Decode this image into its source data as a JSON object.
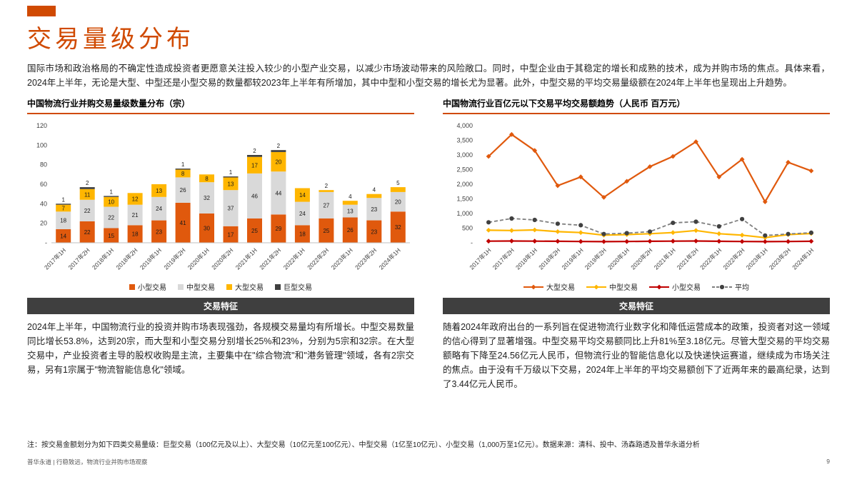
{
  "header": {
    "title": "交易量级分布",
    "intro": "国际市场和政治格局的不确定性造成投资者更愿意关注投入较少的小型产业交易，以减少市场波动带来的风险敞口。同时，中型企业由于其稳定的增长和成熟的技术，成为并购市场的焦点。具体来看，2024年上半年，无论是大型、中型还是小型交易的数量都较2023年上半年有所增加，其中中型和小型交易的增长尤为显著。此外，中型交易的平均交易量级额在2024年上半年也呈现出上升趋势。"
  },
  "left_panel": {
    "chart_title": "中国物流行业并购交易量级数量分布（宗）",
    "section_header": "交易特征",
    "body": "2024年上半年，中国物流行业的投资并购市场表现强劲，各规模交易量均有所增长。中型交易数量同比增长53.8%，达到20宗，而大型和小型交易分别增长25%和23%，分别为5宗和32宗。在大型交易中，产业投资者主导的股权收购是主流，主要集中在\"综合物流\"和\"港务管理\"领域，各有2宗交易，另有1宗属于\"物流智能信息化\"领域。"
  },
  "right_panel": {
    "chart_title": "中国物流行业百亿元以下交易平均交易额趋势（人民币 百万元）",
    "section_header": "交易特征",
    "body": "随着2024年政府出台的一系列旨在促进物流行业数字化和降低运营成本的政策，投资者对这一领域的信心得到了显著增强。中型交易平均交易额同比上升81%至3.18亿元。尽管大型交易的平均交易额略有下降至24.56亿元人民币，但物流行业的智能信息化以及快递快运赛道，继续成为市场关注的焦点。由于没有千万级以下交易，2024年上半年的平均交易额创下了近两年来的最高纪录，达到了3.44亿元人民币。"
  },
  "footnote": "注：按交易金额划分为如下四类交易量级：巨型交易（100亿元及以上）、大型交易（10亿元至100亿元）、中型交易（1亿至10亿元）、小型交易（1,000万至1亿元）。数据来源：清科、投中、汤森路透及普华永道分析",
  "footer": {
    "left": "普华永道 | 行稳致远，物流行业并购市场观察",
    "page_number": "9"
  },
  "colors": {
    "accent": "#D04A02",
    "small_deal": "#E0590D",
    "mid_deal": "#D9D9D9",
    "large_deal": "#FFB600",
    "mega_deal": "#3F3F3F",
    "red_line": "#C00000",
    "avg_line": "#7F7F7F",
    "section_bar": "#3F3F3F"
  },
  "chart_data": [
    {
      "type": "bar",
      "stacked": true,
      "title": "中国物流行业并购交易量级数量分布（宗）",
      "categories": [
        "2017年1H",
        "2017年2H",
        "2018年1H",
        "2018年2H",
        "2019年1H",
        "2019年2H",
        "2020年1H",
        "2020年2H",
        "2021年1H",
        "2021年2H",
        "2022年1H",
        "2022年2H",
        "2023年1H",
        "2023年2H",
        "2024年1H"
      ],
      "series": [
        {
          "name": "小型交易",
          "color": "#E0590D",
          "values": [
            14,
            22,
            15,
            18,
            23,
            41,
            30,
            17,
            25,
            29,
            18,
            25,
            26,
            23,
            32
          ]
        },
        {
          "name": "中型交易",
          "color": "#D9D9D9",
          "values": [
            18,
            22,
            22,
            21,
            24,
            26,
            32,
            37,
            46,
            44,
            24,
            27,
            13,
            23,
            20
          ]
        },
        {
          "name": "大型交易",
          "color": "#FFB600",
          "values": [
            7,
            11,
            10,
            12,
            13,
            8,
            8,
            13,
            17,
            20,
            14,
            2,
            4,
            4,
            5
          ]
        },
        {
          "name": "巨型交易",
          "color": "#3F3F3F",
          "values": [
            1,
            2,
            1,
            0,
            0,
            1,
            0,
            1,
            2,
            2,
            0,
            0,
            0,
            0,
            0
          ]
        }
      ],
      "ylim": [
        0,
        120
      ],
      "ytick_step": 20,
      "grid": false,
      "legend_position": "bottom"
    },
    {
      "type": "line",
      "title": "中国物流行业百亿元以下交易平均交易额趋势（人民币 百万元）",
      "categories": [
        "2017年1H",
        "2017年2H",
        "2018年1H",
        "2018年2H",
        "2019年1H",
        "2019年2H",
        "2020年1H",
        "2020年2H",
        "2021年1H",
        "2021年2H",
        "2022年1H",
        "2022年2H",
        "2023年1H",
        "2023年2H",
        "2024年1H"
      ],
      "series": [
        {
          "name": "大型交易",
          "color": "#E0590D",
          "marker": "diamond",
          "dashed": false,
          "values": [
            2950,
            3700,
            3150,
            1950,
            2250,
            1550,
            2100,
            2600,
            2950,
            3450,
            2250,
            2850,
            1400,
            2750,
            2456
          ]
        },
        {
          "name": "中型交易",
          "color": "#FFB600",
          "marker": "diamond",
          "dashed": false,
          "values": [
            430,
            420,
            440,
            380,
            350,
            260,
            280,
            310,
            350,
            420,
            310,
            260,
            176,
            280,
            318
          ]
        },
        {
          "name": "小型交易",
          "color": "#C00000",
          "marker": "diamond",
          "dashed": false,
          "values": [
            55,
            60,
            55,
            50,
            45,
            40,
            45,
            50,
            55,
            60,
            50,
            45,
            40,
            45,
            50
          ]
        },
        {
          "name": "平均",
          "color": "#7F7F7F",
          "marker": "circle",
          "marker_color": "#404040",
          "dashed": true,
          "values": [
            700,
            830,
            780,
            650,
            600,
            300,
            330,
            380,
            680,
            720,
            560,
            810,
            250,
            300,
            344
          ]
        }
      ],
      "ylim": [
        0,
        4000
      ],
      "ytick_step": 500,
      "grid": false,
      "legend_position": "bottom"
    }
  ]
}
